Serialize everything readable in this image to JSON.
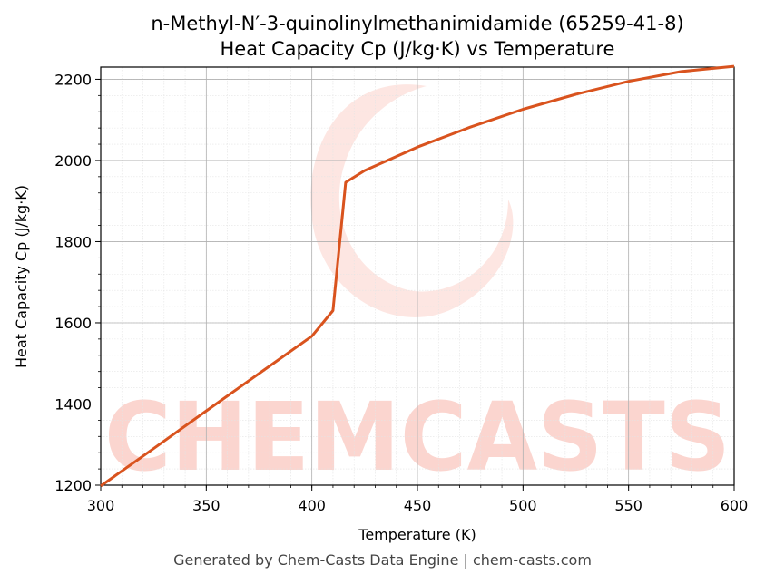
{
  "chart_data": {
    "type": "line",
    "title": "n-Methyl-N′-3-quinolinylmethanimidamide (65259-41-8)",
    "subtitle": "Heat Capacity Cp (J/kg·K) vs Temperature",
    "xlabel": "Temperature (K)",
    "ylabel": "Heat Capacity Cp (J/kg·K)",
    "xlim": [
      300,
      600
    ],
    "ylim": [
      1200,
      2230
    ],
    "x_ticks": [
      300,
      350,
      400,
      450,
      500,
      550,
      600
    ],
    "y_ticks": [
      1200,
      1400,
      1600,
      1800,
      2000,
      2200
    ],
    "grid": true,
    "line_color": "#d9531e",
    "series": [
      {
        "x": [
          300,
          325,
          350,
          375,
          400,
          410,
          416,
          425,
          450,
          475,
          500,
          525,
          550,
          575,
          600
        ],
        "y": [
          1198,
          1290,
          1383,
          1475,
          1567,
          1630,
          1946,
          1975,
          2033,
          2082,
          2126,
          2163,
          2195,
          2219,
          2232
        ]
      }
    ]
  },
  "watermark": {
    "text": "CHEMCASTS",
    "color": "#fbd5cf"
  },
  "footer": "Generated by Chem-Casts Data Engine | chem-casts.com"
}
